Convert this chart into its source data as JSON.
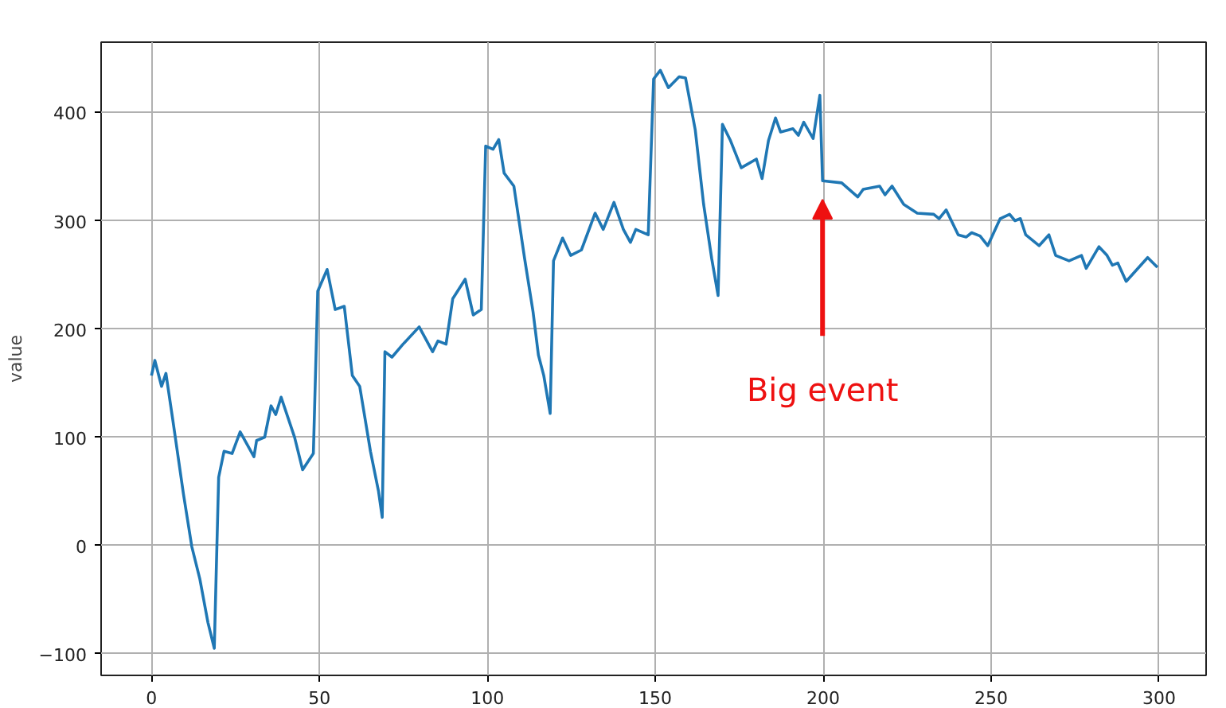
{
  "chart_data": {
    "type": "line",
    "ylabel": "value",
    "xlim": [
      -15,
      314
    ],
    "ylim": [
      -120,
      465
    ],
    "xticks": [
      0,
      50,
      100,
      150,
      200,
      250,
      300
    ],
    "yticks": [
      -100,
      0,
      100,
      200,
      300,
      400
    ],
    "grid": true,
    "marker": "none",
    "line_style": "solid",
    "annotations": [
      "Big event"
    ],
    "series": [
      {
        "color": "#1f77b4",
        "x": [
          0,
          1,
          3,
          4.3,
          6.3,
          9.5,
          12,
          14.4,
          16.8,
          18.7,
          20,
          21.6,
          24,
          26.4,
          30.5,
          31.3,
          33.7,
          35.6,
          37,
          38.6,
          42.6,
          45,
          48.2,
          49.5,
          52.3,
          54.7,
          57.4,
          59.8,
          62,
          65.2,
          67.6,
          68.7,
          69.5,
          71.6,
          74.9,
          79.7,
          83.7,
          85.3,
          87.7,
          89.7,
          93.4,
          95.8,
          98.2,
          99.5,
          101.7,
          103.4,
          105,
          107.9,
          111.1,
          113.6,
          115.2,
          116.8,
          118.7,
          119.7,
          122.4,
          124.8,
          128,
          132.1,
          134.5,
          137.7,
          140.5,
          142.6,
          144.2,
          147.9,
          149.5,
          151.5,
          153.9,
          157.1,
          159,
          161.9,
          164.4,
          166.8,
          168.7,
          170,
          172.4,
          175.6,
          180.1,
          181.8,
          183.7,
          185.8,
          187.3,
          191,
          192.6,
          194.2,
          197,
          199,
          199.8,
          205.5,
          210.3,
          211.9,
          216.8,
          218.4,
          220.5,
          224,
          228,
          232.9,
          234.5,
          236.6,
          240.2,
          242.6,
          244.2,
          246.7,
          249,
          252.7,
          255.5,
          257.1,
          258.7,
          260.3,
          264.3,
          267.2,
          269.2,
          273.2,
          276.9,
          278.3,
          282.1,
          284.5,
          286.1,
          287.7,
          290.2,
          293.4,
          296.6,
          299.5
        ],
        "values": [
          157,
          171,
          147,
          159,
          117,
          48,
          -1,
          -31,
          -71,
          -95,
          63,
          87,
          85,
          105,
          82,
          97,
          100,
          129,
          121,
          137,
          100,
          70,
          85,
          235,
          255,
          218,
          221,
          157,
          147,
          87,
          50,
          26,
          179,
          174,
          186,
          202,
          179,
          189,
          186,
          228,
          246,
          213,
          218,
          369,
          366,
          375,
          344,
          332,
          265,
          216,
          176,
          157,
          122,
          263,
          284,
          268,
          273,
          307,
          292,
          317,
          292,
          280,
          292,
          287,
          431,
          439,
          423,
          433,
          432,
          384,
          315,
          265,
          231,
          389,
          374,
          349,
          357,
          339,
          374,
          395,
          382,
          385,
          379,
          391,
          376,
          416,
          337,
          335,
          322,
          329,
          332,
          324,
          332,
          315,
          307,
          306,
          302,
          310,
          287,
          285,
          289,
          286,
          277,
          302,
          306,
          300,
          302,
          287,
          277,
          287,
          268,
          263,
          268,
          256,
          276,
          268,
          259,
          261,
          244,
          255,
          266,
          257
        ]
      }
    ]
  }
}
